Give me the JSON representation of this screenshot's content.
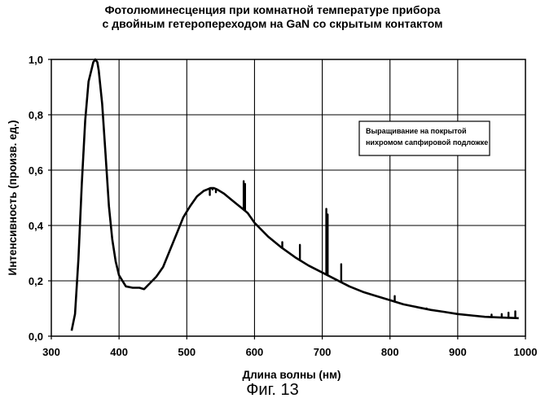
{
  "chart_data": {
    "type": "line",
    "title_line1": "Фотолюминесценция при комнатной температуре прибора",
    "title_line2": "с двойным гетеропереходом на GaN со скрытым контактом",
    "xlabel": "Длина волны (нм)",
    "ylabel": "Интенсивность (произв. ед.)",
    "xlim": [
      300,
      1000
    ],
    "ylim": [
      0,
      1.0
    ],
    "x_ticks": [
      300,
      400,
      500,
      600,
      700,
      800,
      900,
      1000
    ],
    "y_ticks": [
      0.0,
      0.2,
      0.4,
      0.6,
      0.8,
      1.0
    ],
    "x_tick_labels": [
      "300",
      "400",
      "500",
      "600",
      "700",
      "800",
      "900",
      "1000"
    ],
    "y_tick_labels": [
      "0,0",
      "0,2",
      "0,4",
      "0,6",
      "0,8",
      "1,0"
    ],
    "grid": true,
    "legend": {
      "text_line1": "Выращивание на покрытой",
      "text_line2": "нихромом сапфировой подложке",
      "position": "right"
    },
    "series": [
      {
        "name": "photoluminescence",
        "x": [
          330,
          335,
          340,
          345,
          350,
          355,
          360,
          362,
          365,
          368,
          370,
          375,
          380,
          385,
          390,
          395,
          400,
          410,
          420,
          430,
          437,
          445,
          455,
          465,
          475,
          485,
          495,
          505,
          515,
          525,
          535,
          540,
          545,
          555,
          565,
          575,
          580,
          585,
          590,
          600,
          620,
          640,
          660,
          680,
          700,
          720,
          740,
          760,
          780,
          800,
          820,
          840,
          860,
          880,
          900,
          920,
          940,
          960,
          980,
          990
        ],
        "y": [
          0.02,
          0.08,
          0.28,
          0.55,
          0.78,
          0.92,
          0.97,
          0.99,
          1.0,
          0.99,
          0.96,
          0.84,
          0.66,
          0.47,
          0.35,
          0.27,
          0.22,
          0.18,
          0.175,
          0.175,
          0.17,
          0.19,
          0.215,
          0.25,
          0.31,
          0.37,
          0.43,
          0.47,
          0.505,
          0.525,
          0.535,
          0.535,
          0.53,
          0.515,
          0.495,
          0.475,
          0.465,
          0.455,
          0.445,
          0.41,
          0.36,
          0.32,
          0.285,
          0.255,
          0.23,
          0.205,
          0.18,
          0.16,
          0.145,
          0.13,
          0.115,
          0.105,
          0.095,
          0.088,
          0.08,
          0.075,
          0.07,
          0.068,
          0.066,
          0.065
        ]
      },
      {
        "name": "spikes",
        "x": [
          534,
          538,
          543,
          584,
          586,
          641,
          667,
          706,
          708,
          728,
          807,
          854,
          950,
          965,
          975,
          985
        ],
        "y": [
          0.51,
          0.53,
          0.52,
          0.56,
          0.55,
          0.34,
          0.33,
          0.46,
          0.44,
          0.26,
          0.145,
          0.1,
          0.078,
          0.08,
          0.085,
          0.09
        ]
      }
    ]
  },
  "caption": "Фиг. 13"
}
